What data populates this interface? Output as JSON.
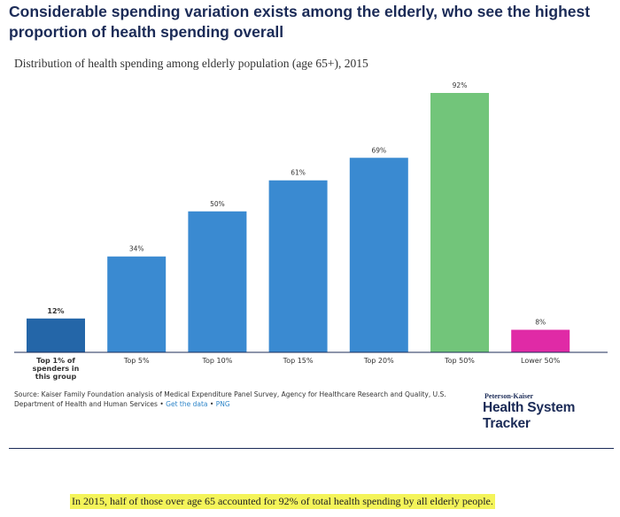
{
  "headline": "Considerable spending variation exists among the elderly, who see the highest proportion of health spending overall",
  "chart_data": {
    "type": "bar",
    "title": "Distribution of health spending among elderly population (age 65+), 2015",
    "categories": [
      "Top 1% of spenders in this group",
      "Top 5%",
      "Top 10%",
      "Top 15%",
      "Top 20%",
      "Top 50%",
      "Lower 50%"
    ],
    "values": [
      12,
      34,
      50,
      61,
      69,
      92,
      8
    ],
    "value_labels": [
      "12%",
      "34%",
      "50%",
      "61%",
      "69%",
      "92%",
      "8%"
    ],
    "colors": [
      "#2466a8",
      "#3a8ad1",
      "#3a8ad1",
      "#3a8ad1",
      "#3a8ad1",
      "#72c57a",
      "#e02aa6"
    ],
    "ylim": [
      0,
      100
    ],
    "xlabel": "",
    "ylabel": "",
    "grid": false,
    "legend": "none"
  },
  "source": {
    "text": "Source: Kaiser Family Foundation analysis of Medical Expenditure Panel Survey, Agency for Healthcare Research and Quality, U.S. Department of Health and Human Services",
    "separator": "•",
    "get_data_link": "Get the data",
    "png_link": "PNG"
  },
  "logo": {
    "small": "Peterson-Kaiser",
    "big": "Health System Tracker"
  },
  "caption": "In 2015, half of those over age 65 accounted for 92% of total health spending by all elderly people."
}
